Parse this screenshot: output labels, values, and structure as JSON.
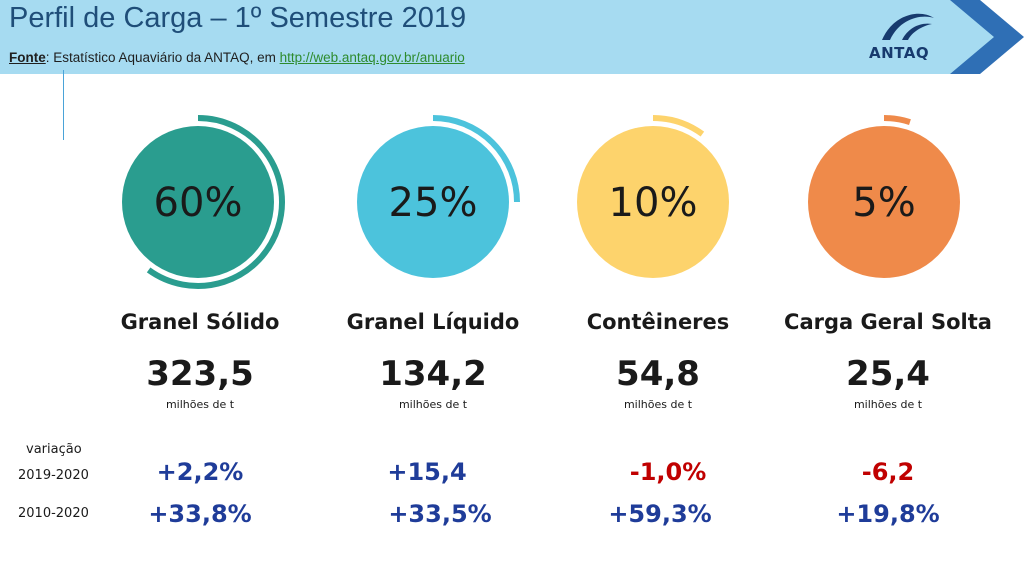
{
  "header": {
    "title": "Perfil de Carga – 1º Semestre 2019",
    "source_label": "Fonte",
    "source_text": ": Estatístico Aquaviário da ANTAQ, em ",
    "source_link": "http://web.antaq.gov.br/anuario",
    "logo_text": "ANTAQ"
  },
  "colors": {
    "header_band": "#a6dbf1",
    "arrow": "#2f6fb5",
    "positive": "#1f3c99",
    "negative": "#c00000"
  },
  "variation": {
    "caption": "variação",
    "row1_label": "2019-2020",
    "row2_label": "2010-2020"
  },
  "chart_data": {
    "type": "pie",
    "categories": [
      "Granel Sólido",
      "Granel Líquido",
      "Contêineres",
      "Carga Geral Solta"
    ],
    "share_labels": [
      "60%",
      "25%",
      "10%",
      "5%"
    ],
    "shares": [
      60,
      25,
      10,
      5
    ],
    "amounts": [
      "323,5",
      "134,2",
      "54,8",
      "25,4"
    ],
    "unit": "milhões de t",
    "variation_2019_2020": [
      "+2,2%",
      "+15,4",
      "-1,0%",
      "-6,2"
    ],
    "variation_2010_2020": [
      "+33,8%",
      "+33,5%",
      "+59,3%",
      "+19,8%"
    ],
    "colors": [
      "#2a9d8f",
      "#4cc3dc",
      "#fdd36c",
      "#ef8a4a"
    ]
  }
}
